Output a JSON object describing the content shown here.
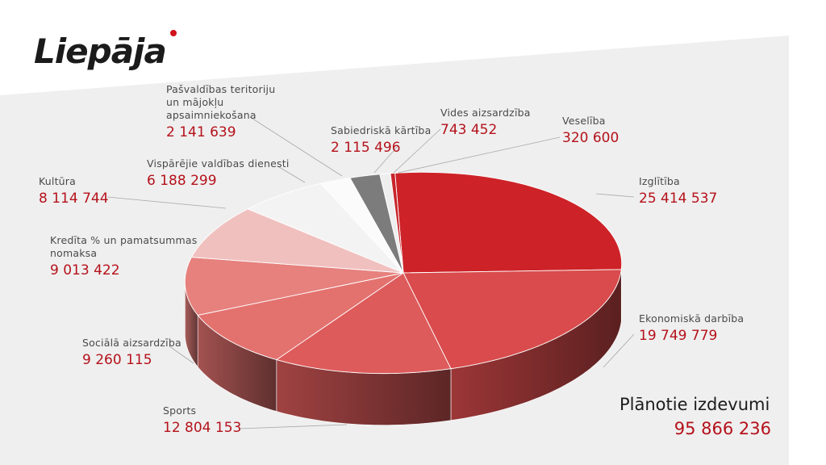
{
  "brand": {
    "logo_text": "Liepāja",
    "accent_color": "#d0121b"
  },
  "summary": {
    "label": "Plānotie izdevumi",
    "value": "95 866 236"
  },
  "chart_data": {
    "type": "pie",
    "title": "",
    "series": [
      {
        "values": [
          25414537,
          19749779,
          12804153,
          9260115,
          9013422,
          8114744,
          6188299,
          2141639,
          2115496,
          743452,
          320600
        ]
      }
    ],
    "slices": [
      {
        "label": [
          "Izglītība"
        ],
        "value": 25414537,
        "display": "25 414 537",
        "color": "#cd2328"
      },
      {
        "label": [
          "Ekonomiskā darbība"
        ],
        "value": 19749779,
        "display": "19 749 779",
        "color": "#d94b4c"
      },
      {
        "label": [
          "Sports"
        ],
        "value": 12804153,
        "display": "12 804 153",
        "color": "#de5b5b"
      },
      {
        "label": [
          "Sociālā aizsardzība"
        ],
        "value": 9260115,
        "display": "9 260 115",
        "color": "#e3726f"
      },
      {
        "label": [
          "Kredīta % un pamatsummas",
          "nomaksa"
        ],
        "value": 9013422,
        "display": "9 013 422",
        "color": "#e6817d"
      },
      {
        "label": [
          "Kultūra"
        ],
        "value": 8114744,
        "display": "8 114 744",
        "color": "#f0c0bf"
      },
      {
        "label": [
          "Vispārējie valdības dienesti"
        ],
        "value": 6188299,
        "display": "6 188 299",
        "color": "#f3f3f3"
      },
      {
        "label": [
          "Pašvaldības teritoriju",
          "un mājokļu",
          "apsaimniekošana"
        ],
        "value": 2141639,
        "display": "2 141 639",
        "color": "#fbfbfb"
      },
      {
        "label": [
          "Sabiedriskā kārtība"
        ],
        "value": 2115496,
        "display": "2 115 496",
        "color": "#7c7c7c"
      },
      {
        "label": [
          "Vides aizsardzība"
        ],
        "value": 743452,
        "display": "743 452",
        "color": "#eeeeee"
      },
      {
        "label": [
          "Veselība"
        ],
        "value": 320600,
        "display": "320 600",
        "color": "#c7252b"
      }
    ]
  }
}
